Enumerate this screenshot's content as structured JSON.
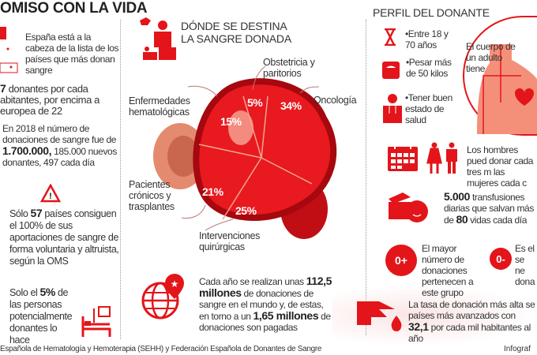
{
  "title": "OMISO CON LA VIDA",
  "left": {
    "spain_text": "España está a la cabeza de la lista de los países que más donan sangre",
    "donors_pre": "7",
    "donors_text": " donantes por cada abitantes, por encima a europea de 22",
    "y2018_pre": "En 2018 el número de donaciones de sangre fue de ",
    "y2018_bold": "1.700.000,",
    "y2018_post": " 185.000 nuevos donantes, 497 cada día",
    "countries_pre": "Sólo ",
    "countries_bold": "57",
    "countries_post": " países consiguen el 100% de sus aportaciones de sangre de forma voluntaria y altruista, según la OMS",
    "pct_pre": "Solo el ",
    "pct_bold": "5%",
    "pct_post": " de las personas potencialmente donantes lo hace"
  },
  "center": {
    "title_line1": "DÓNDE SE DESTINA",
    "title_line2": "LA SANGRE DONADA",
    "segments": [
      {
        "label": "Obstetricia y paritorios",
        "value": "5%"
      },
      {
        "label": "Oncología",
        "value": "34%"
      },
      {
        "label": "Enfermedades hematológicas",
        "value": "15%"
      },
      {
        "label": "Pacientes crónicos y trasplantes",
        "value": "21%"
      },
      {
        "label": "Intervenciones quirúrgicas",
        "value": "25%"
      }
    ],
    "world_pre": "Cada año se realizan unas ",
    "world_bold1": "112,5 millones",
    "world_mid": " de donaciones de sangre en el mundo y, de estas, en torno a un ",
    "world_bold2": "1,65 millones",
    "world_post": " de donaciones son pagadas"
  },
  "right": {
    "title": "PERFIL DEL DONANTE",
    "req_age": "•Entre 18 y 70 años",
    "req_weight": "•Pesar más de 50 kilos",
    "req_health": "•Tener buen estado de salud",
    "body_text": "El cuerpo de un adulto tiene",
    "frequency_text": "Los hombres pued donar cada tres m las mujeres cada c",
    "transf_bold1": "5.000",
    "transf_mid": " transfusiones diarias que salvan más de ",
    "transf_bold2": "80",
    "transf_post": " vidas cada día",
    "group_pos": "0+",
    "group_pos_text": "El mayor número de donaciones pertenecen a este grupo",
    "group_neg": "0-",
    "group_neg_text": "Es el se ne dona",
    "rate_pre": "La tasa de donación más alta se países más avanzados con ",
    "rate_bold": "32,1",
    "rate_post": " por cada mil habitantes al año"
  },
  "footer": {
    "source": "Española de Hematología y Hemoterapia (SEHH) y Federación Española de Donantes de Sangre",
    "credit": "Infograf"
  },
  "colors": {
    "accent": "#e3151a",
    "dark_red": "#a5080e",
    "pink": "#f2a08a"
  }
}
